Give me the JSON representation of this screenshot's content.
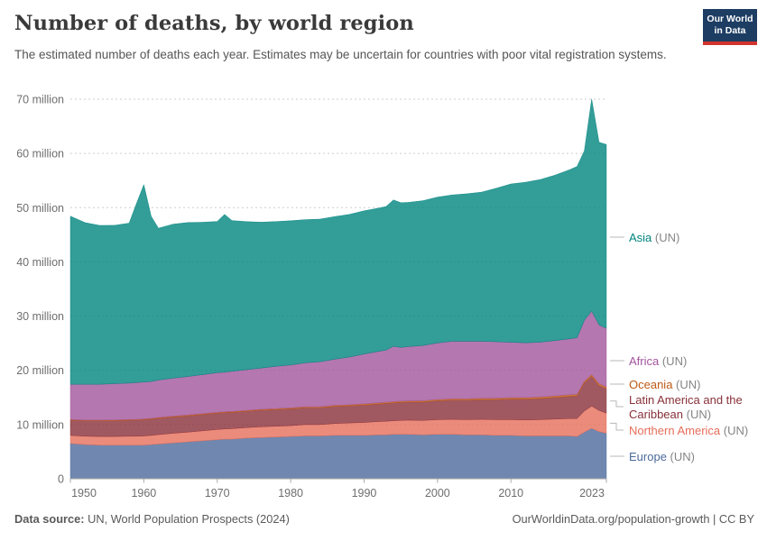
{
  "header": {
    "title": "Number of deaths, by world region",
    "subtitle": "The estimated number of deaths each year. Estimates may be uncertain for countries with poor vital registration systems.",
    "logo": {
      "line1": "Our World",
      "line2": "in Data",
      "bg_color": "#1d3d63",
      "stripe_color": "#d0342c"
    }
  },
  "footer": {
    "source_label": "Data source:",
    "source_text": "UN, World Population Prospects (2024)",
    "right_text": "OurWorldinData.org/population-growth | CC BY"
  },
  "chart_data": {
    "type": "area",
    "stacked": true,
    "title": "Number of deaths, by world region",
    "unit": "million deaths per year",
    "grid": "dashed",
    "legend_position": "right",
    "xlim": [
      1950,
      2023
    ],
    "ylim": [
      0,
      70
    ],
    "x_ticks": [
      1950,
      1960,
      1970,
      1980,
      1990,
      2000,
      2010,
      2023
    ],
    "y_ticks": [
      {
        "value": 0,
        "label": "0"
      },
      {
        "value": 10,
        "label": "10 million"
      },
      {
        "value": 20,
        "label": "20 million"
      },
      {
        "value": 30,
        "label": "30 million"
      },
      {
        "value": 40,
        "label": "40 million"
      },
      {
        "value": 50,
        "label": "50 million"
      },
      {
        "value": 60,
        "label": "60 million"
      },
      {
        "value": 70,
        "label": "70 million"
      }
    ],
    "x": [
      1950,
      1952,
      1954,
      1956,
      1958,
      1959,
      1960,
      1961,
      1962,
      1964,
      1966,
      1968,
      1970,
      1971,
      1972,
      1974,
      1976,
      1978,
      1980,
      1982,
      1984,
      1986,
      1988,
      1990,
      1992,
      1993,
      1994,
      1995,
      1996,
      1998,
      2000,
      2002,
      2004,
      2006,
      2008,
      2010,
      2012,
      2014,
      2016,
      2018,
      2019,
      2020,
      2021,
      2022,
      2023
    ],
    "series": [
      {
        "id": "europe",
        "legend_label": "Europe",
        "legend_suffix": "(UN)",
        "color": "#4C6A9C",
        "values": [
          6.5,
          6.3,
          6.2,
          6.2,
          6.2,
          6.2,
          6.2,
          6.3,
          6.4,
          6.6,
          6.8,
          7.0,
          7.2,
          7.3,
          7.3,
          7.5,
          7.6,
          7.7,
          7.8,
          7.9,
          7.9,
          8.0,
          8.0,
          8.0,
          8.1,
          8.1,
          8.2,
          8.2,
          8.2,
          8.1,
          8.2,
          8.2,
          8.1,
          8.1,
          8.0,
          8.0,
          7.9,
          7.9,
          7.9,
          7.9,
          7.8,
          8.6,
          9.3,
          8.7,
          8.4
        ]
      },
      {
        "id": "northern_america",
        "legend_label": "Northern America",
        "legend_suffix": "(UN)",
        "color": "#E56E5A",
        "values": [
          1.5,
          1.55,
          1.6,
          1.6,
          1.65,
          1.65,
          1.7,
          1.7,
          1.75,
          1.8,
          1.8,
          1.85,
          1.9,
          1.9,
          1.95,
          1.95,
          2.0,
          2.0,
          2.0,
          2.1,
          2.1,
          2.2,
          2.3,
          2.4,
          2.45,
          2.5,
          2.5,
          2.55,
          2.6,
          2.65,
          2.7,
          2.75,
          2.8,
          2.85,
          2.9,
          2.9,
          2.95,
          3.0,
          3.1,
          3.2,
          3.3,
          3.9,
          4.1,
          3.9,
          3.7
        ]
      },
      {
        "id": "latin_america",
        "legend_label": "Latin America and the Caribbean",
        "legend_suffix": "(UN)",
        "color": "#883039",
        "values": [
          2.8,
          2.85,
          2.9,
          2.9,
          2.95,
          2.95,
          3.0,
          3.0,
          3.0,
          3.0,
          3.0,
          3.0,
          3.0,
          3.0,
          3.0,
          3.0,
          3.05,
          3.05,
          3.1,
          3.1,
          3.1,
          3.15,
          3.15,
          3.2,
          3.25,
          3.3,
          3.3,
          3.35,
          3.35,
          3.4,
          3.5,
          3.55,
          3.6,
          3.65,
          3.7,
          3.8,
          3.85,
          3.9,
          4.0,
          4.1,
          4.2,
          5.2,
          5.5,
          4.6,
          4.5
        ]
      },
      {
        "id": "oceania",
        "legend_label": "Oceania",
        "legend_suffix": "(UN)",
        "color": "#BE5915",
        "values": [
          0.13,
          0.13,
          0.13,
          0.14,
          0.14,
          0.14,
          0.14,
          0.14,
          0.15,
          0.15,
          0.15,
          0.16,
          0.16,
          0.16,
          0.17,
          0.17,
          0.17,
          0.18,
          0.18,
          0.19,
          0.19,
          0.2,
          0.2,
          0.21,
          0.21,
          0.22,
          0.22,
          0.22,
          0.22,
          0.23,
          0.24,
          0.25,
          0.25,
          0.26,
          0.27,
          0.27,
          0.28,
          0.29,
          0.29,
          0.3,
          0.3,
          0.31,
          0.33,
          0.36,
          0.35
        ]
      },
      {
        "id": "africa",
        "legend_label": "Africa",
        "legend_suffix": "(UN)",
        "color": "#A2559C",
        "values": [
          6.5,
          6.6,
          6.6,
          6.7,
          6.7,
          6.8,
          6.8,
          6.8,
          6.9,
          7.0,
          7.1,
          7.2,
          7.3,
          7.3,
          7.4,
          7.5,
          7.6,
          7.8,
          7.9,
          8.1,
          8.3,
          8.5,
          8.8,
          9.2,
          9.5,
          9.6,
          10.2,
          9.9,
          10.0,
          10.2,
          10.4,
          10.6,
          10.6,
          10.5,
          10.4,
          10.2,
          10.1,
          10.1,
          10.2,
          10.3,
          10.4,
          11.2,
          11.7,
          10.8,
          10.8
        ]
      },
      {
        "id": "asia",
        "legend_label": "Asia",
        "legend_suffix": "(UN)",
        "color": "#00847E",
        "values": [
          31.0,
          29.8,
          29.3,
          29.2,
          29.5,
          33.0,
          36.4,
          30.5,
          28.0,
          28.4,
          28.4,
          28.1,
          27.9,
          29.1,
          27.8,
          27.3,
          26.9,
          26.7,
          26.6,
          26.4,
          26.3,
          26.3,
          26.3,
          26.4,
          26.4,
          26.5,
          27.0,
          26.7,
          26.6,
          26.7,
          26.9,
          27.0,
          27.2,
          27.5,
          28.3,
          29.2,
          29.6,
          30.0,
          30.5,
          31.2,
          31.6,
          31.3,
          39.1,
          33.7,
          33.9
        ]
      }
    ]
  }
}
